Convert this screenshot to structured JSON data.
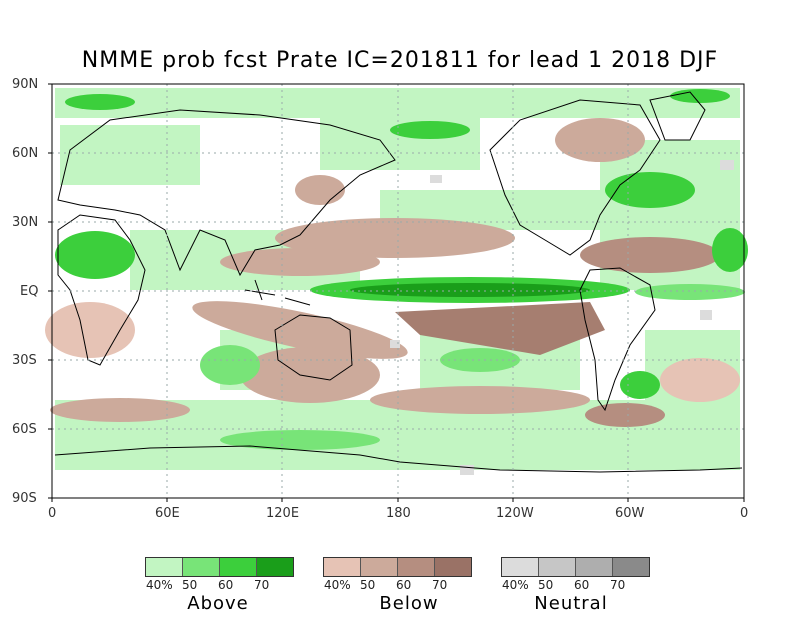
{
  "title": "NMME prob fcst Prate IC=201811 for lead 1 2018 DJF",
  "lat_labels": [
    "90N",
    "60N",
    "30N",
    "EQ",
    "30S",
    "60S",
    "90S"
  ],
  "lon_labels": [
    "0",
    "60E",
    "120E",
    "180",
    "120W",
    "60W",
    "0"
  ],
  "legends": [
    {
      "name": "Above",
      "colors": [
        "#c2f5c2",
        "#78e478",
        "#3ccf3c",
        "#1a9e1a"
      ],
      "ticks": [
        "40%",
        "50",
        "60",
        "70"
      ]
    },
    {
      "name": "Below",
      "colors": [
        "#e6c3b5",
        "#ccaa9b",
        "#b58e80",
        "#9a7266"
      ],
      "ticks": [
        "40%",
        "50",
        "60",
        "70"
      ]
    },
    {
      "name": "Neutral",
      "colors": [
        "#dcdcdc",
        "#c6c6c6",
        "#aeaeae",
        "#8a8a8a"
      ],
      "ticks": [
        "40%",
        "50",
        "60",
        "70"
      ]
    }
  ]
}
